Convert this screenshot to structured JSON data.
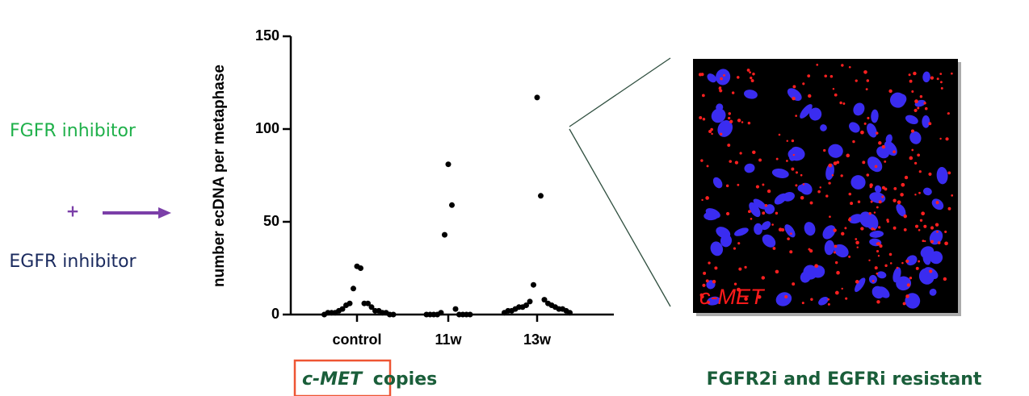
{
  "treatment": {
    "first": "FGFR inhibitor",
    "plus": "+",
    "second": "EGFR inhibitor"
  },
  "chart_data": {
    "type": "strip",
    "y_label": "number ecDNA per metaphase",
    "categories": [
      "control",
      "11w",
      "13w"
    ],
    "values": [
      [
        26,
        25,
        14,
        6,
        6,
        6,
        5,
        4,
        3,
        2,
        2,
        2,
        1,
        1,
        1,
        1,
        1,
        0,
        0,
        0
      ],
      [
        81,
        59,
        43,
        3,
        1,
        0,
        0,
        0,
        0,
        0,
        0,
        0,
        0
      ],
      [
        117,
        64,
        16,
        8,
        7,
        6,
        5,
        5,
        4,
        4,
        4,
        3,
        3,
        3,
        2,
        2,
        2,
        1,
        1
      ]
    ],
    "color": "#000000",
    "ylim": [
      0,
      150
    ],
    "yticks": [
      0,
      50,
      100,
      150
    ]
  },
  "caption": {
    "gene": "c-MET",
    "text": "copies"
  },
  "image": {
    "label": "c-MET",
    "title": "FGFR2i and EGFRi resistant"
  }
}
